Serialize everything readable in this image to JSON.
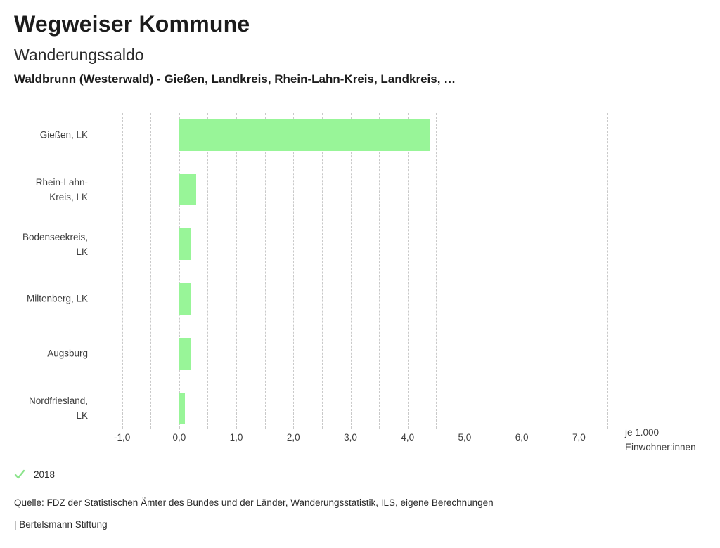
{
  "header": {
    "app_title": "Wegweiser Kommune",
    "chart_title": "Wanderungssaldo",
    "subtitle": "Waldbrunn (Westerwald) - Gießen, Landkreis, Rhein-Lahn-Kreis, Landkreis, …"
  },
  "chart_data": {
    "type": "bar",
    "orientation": "horizontal",
    "title": "Wanderungssaldo",
    "categories": [
      "Gießen, LK",
      "Rhein-Lahn-Kreis, LK",
      "Bodenseekreis, LK",
      "Miltenberg, LK",
      "Augsburg",
      "Nordfriesland, LK"
    ],
    "category_display_labels": [
      "Gießen, LK",
      "Rhein-Lahn-\nKreis, LK",
      "Bodenseekreis,\nLK",
      "Miltenberg, LK",
      "Augsburg",
      "Nordfriesland,\nLK"
    ],
    "series": [
      {
        "name": "2018",
        "values": [
          4.4,
          0.3,
          0.2,
          0.2,
          0.2,
          0.1
        ]
      }
    ],
    "xlim": [
      -1.5,
      7.5
    ],
    "x_ticks": [
      -1,
      0,
      1,
      2,
      3,
      4,
      5,
      6,
      7
    ],
    "x_tick_labels": [
      "-1,0",
      "0,0",
      "1,0",
      "2,0",
      "3,0",
      "4,0",
      "5,0",
      "6,0",
      "7,0"
    ],
    "gridline_step": 0.5,
    "grid": "vertical-dashed",
    "legend_position": "bottom-left",
    "xlabel": "je 1.000 Einwohner:innen",
    "ylabel": ""
  },
  "legend": {
    "check_icon": "checkmark",
    "label": "2018"
  },
  "footer": {
    "source": "Quelle: FDZ der Statistischen Ämter des Bundes und der Länder, Wanderungsstatistik, ILS, eigene Berechnungen",
    "attribution": "| Bertelsmann Stiftung"
  },
  "colors": {
    "bar": "#98f598",
    "check": "#8de48d",
    "grid": "#c9c9c9",
    "title_text": "#1c1c1c",
    "axis_text": "#3d3d3d"
  }
}
